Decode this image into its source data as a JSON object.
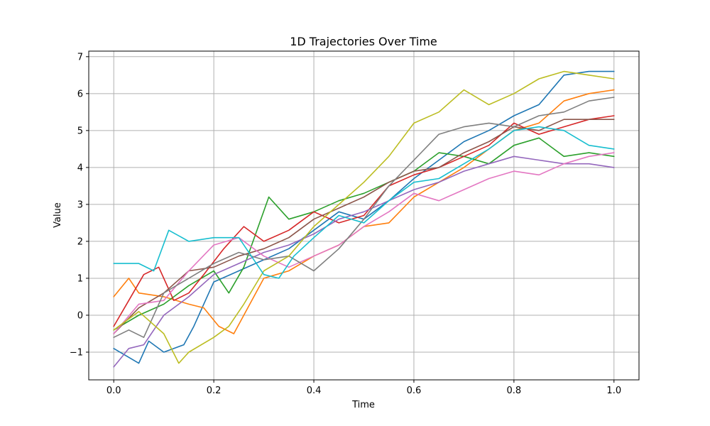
{
  "chart_data": {
    "type": "line",
    "title": "1D Trajectories Over Time",
    "xlabel": "Time",
    "ylabel": "Value",
    "xlim": [
      -0.05,
      1.05
    ],
    "ylim": [
      -1.75,
      7.15
    ],
    "xticks": [
      0.0,
      0.2,
      0.4,
      0.6,
      0.8,
      1.0
    ],
    "xtick_labels": [
      "0.0",
      "0.2",
      "0.4",
      "0.6",
      "0.8",
      "1.0"
    ],
    "yticks": [
      -1,
      0,
      1,
      2,
      3,
      4,
      5,
      6,
      7
    ],
    "ytick_labels": [
      "−1",
      "0",
      "1",
      "2",
      "3",
      "4",
      "5",
      "6",
      "7"
    ],
    "grid": true,
    "legend": false,
    "series": [
      {
        "color": "#1f77b4",
        "x": [
          0,
          0.05,
          0.07,
          0.1,
          0.14,
          0.16,
          0.2,
          0.25,
          0.3,
          0.35,
          0.4,
          0.45,
          0.5,
          0.55,
          0.6,
          0.65,
          0.7,
          0.75,
          0.8,
          0.85,
          0.9,
          0.95,
          1.0
        ],
        "y": [
          -0.9,
          -1.3,
          -0.7,
          -1.0,
          -0.8,
          -0.3,
          0.9,
          1.2,
          1.5,
          1.8,
          2.3,
          2.8,
          2.6,
          3.1,
          3.7,
          4.2,
          4.7,
          5.0,
          5.4,
          5.7,
          6.5,
          6.6,
          6.6
        ]
      },
      {
        "color": "#ff7f0e",
        "x": [
          0,
          0.03,
          0.05,
          0.1,
          0.15,
          0.18,
          0.21,
          0.24,
          0.3,
          0.35,
          0.4,
          0.45,
          0.5,
          0.55,
          0.6,
          0.65,
          0.7,
          0.75,
          0.8,
          0.85,
          0.9,
          0.95,
          1.0
        ],
        "y": [
          0.5,
          1.0,
          0.6,
          0.5,
          0.3,
          0.2,
          -0.3,
          -0.5,
          1.0,
          1.2,
          1.6,
          1.9,
          2.4,
          2.5,
          3.2,
          3.6,
          4.0,
          4.5,
          5.0,
          5.2,
          5.8,
          6.0,
          6.1
        ]
      },
      {
        "color": "#2ca02c",
        "x": [
          0,
          0.05,
          0.1,
          0.15,
          0.2,
          0.23,
          0.26,
          0.31,
          0.35,
          0.4,
          0.45,
          0.5,
          0.55,
          0.6,
          0.65,
          0.7,
          0.75,
          0.8,
          0.85,
          0.9,
          0.95,
          1.0
        ],
        "y": [
          -0.4,
          0.0,
          0.3,
          0.8,
          1.2,
          0.6,
          1.3,
          3.2,
          2.6,
          2.8,
          3.1,
          3.3,
          3.6,
          3.9,
          4.4,
          4.3,
          4.1,
          4.6,
          4.8,
          4.3,
          4.4,
          4.3
        ]
      },
      {
        "color": "#d62728",
        "x": [
          0,
          0.03,
          0.06,
          0.09,
          0.12,
          0.15,
          0.18,
          0.22,
          0.26,
          0.3,
          0.35,
          0.4,
          0.45,
          0.5,
          0.55,
          0.6,
          0.65,
          0.7,
          0.75,
          0.8,
          0.85,
          0.9,
          0.95,
          1.0
        ],
        "y": [
          -0.3,
          0.4,
          1.1,
          1.3,
          0.4,
          0.6,
          1.1,
          1.8,
          2.4,
          2.0,
          2.3,
          2.8,
          2.5,
          2.7,
          3.5,
          3.8,
          4.0,
          4.3,
          4.6,
          5.2,
          4.9,
          5.1,
          5.3,
          5.4
        ]
      },
      {
        "color": "#9467bd",
        "x": [
          0,
          0.03,
          0.06,
          0.1,
          0.15,
          0.2,
          0.25,
          0.3,
          0.35,
          0.4,
          0.45,
          0.5,
          0.55,
          0.6,
          0.65,
          0.7,
          0.75,
          0.8,
          0.85,
          0.9,
          0.95,
          1.0
        ],
        "y": [
          -1.4,
          -0.9,
          -0.8,
          0.0,
          0.5,
          1.1,
          1.4,
          1.7,
          1.9,
          2.2,
          2.6,
          2.8,
          3.1,
          3.4,
          3.6,
          3.9,
          4.1,
          4.3,
          4.2,
          4.1,
          4.1,
          4.0
        ]
      },
      {
        "color": "#8c564b",
        "x": [
          0,
          0.05,
          0.1,
          0.15,
          0.2,
          0.25,
          0.3,
          0.35,
          0.4,
          0.45,
          0.5,
          0.55,
          0.6,
          0.65,
          0.7,
          0.75,
          0.8,
          0.85,
          0.9,
          0.95,
          1.0
        ],
        "y": [
          -0.5,
          0.2,
          0.6,
          1.2,
          1.3,
          1.6,
          1.8,
          2.1,
          2.6,
          2.9,
          3.2,
          3.6,
          3.9,
          4.0,
          4.4,
          4.7,
          5.1,
          5.0,
          5.3,
          5.3,
          5.3
        ]
      },
      {
        "color": "#e377c2",
        "x": [
          0,
          0.05,
          0.1,
          0.15,
          0.2,
          0.25,
          0.3,
          0.35,
          0.4,
          0.45,
          0.5,
          0.55,
          0.6,
          0.65,
          0.7,
          0.75,
          0.8,
          0.85,
          0.9,
          0.95,
          1.0
        ],
        "y": [
          -0.5,
          0.3,
          0.4,
          1.2,
          1.9,
          2.1,
          1.6,
          1.3,
          1.6,
          1.9,
          2.4,
          2.8,
          3.3,
          3.1,
          3.4,
          3.7,
          3.9,
          3.8,
          4.1,
          4.3,
          4.4
        ]
      },
      {
        "color": "#7f7f7f",
        "x": [
          0,
          0.03,
          0.06,
          0.1,
          0.15,
          0.2,
          0.25,
          0.3,
          0.35,
          0.4,
          0.45,
          0.5,
          0.55,
          0.6,
          0.65,
          0.7,
          0.75,
          0.8,
          0.85,
          0.9,
          0.95,
          1.0
        ],
        "y": [
          -0.6,
          -0.4,
          -0.6,
          0.6,
          1.0,
          1.4,
          1.7,
          1.5,
          1.6,
          1.2,
          1.8,
          2.6,
          3.5,
          4.2,
          4.9,
          5.1,
          5.2,
          5.1,
          5.4,
          5.5,
          5.8,
          5.9
        ]
      },
      {
        "color": "#bcbd22",
        "x": [
          0,
          0.05,
          0.1,
          0.13,
          0.15,
          0.2,
          0.23,
          0.26,
          0.3,
          0.35,
          0.4,
          0.45,
          0.5,
          0.55,
          0.6,
          0.65,
          0.7,
          0.75,
          0.8,
          0.85,
          0.9,
          0.95,
          1.0
        ],
        "y": [
          -0.4,
          0.1,
          -0.5,
          -1.3,
          -1.0,
          -0.6,
          -0.3,
          0.3,
          1.2,
          1.6,
          2.4,
          3.0,
          3.6,
          4.3,
          5.2,
          5.5,
          6.1,
          5.7,
          6.0,
          6.4,
          6.6,
          6.5,
          6.4
        ]
      },
      {
        "color": "#17becf",
        "x": [
          0,
          0.05,
          0.08,
          0.11,
          0.15,
          0.2,
          0.25,
          0.3,
          0.33,
          0.36,
          0.4,
          0.45,
          0.5,
          0.55,
          0.6,
          0.65,
          0.7,
          0.75,
          0.8,
          0.85,
          0.9,
          0.95,
          1.0
        ],
        "y": [
          1.4,
          1.4,
          1.2,
          2.3,
          2.0,
          2.1,
          2.1,
          1.1,
          1.0,
          1.6,
          2.1,
          2.7,
          2.5,
          3.1,
          3.6,
          3.7,
          4.1,
          4.5,
          5.0,
          5.1,
          5.0,
          4.6,
          4.5
        ]
      }
    ]
  }
}
